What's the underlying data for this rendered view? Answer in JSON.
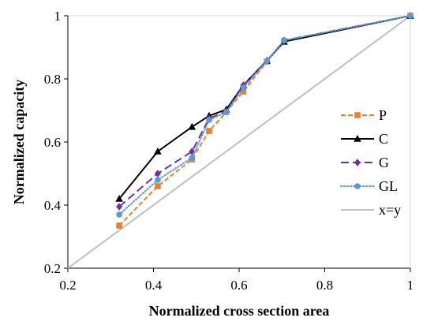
{
  "chart_data": {
    "type": "line",
    "xlabel": "Normalized cross section area",
    "ylabel": "Normalized capacity",
    "xlim": [
      0.2,
      1
    ],
    "ylim": [
      0.2,
      1
    ],
    "x_ticks": [
      0.2,
      0.4,
      0.6,
      0.8,
      1
    ],
    "y_ticks": [
      0.2,
      0.4,
      0.6,
      0.8,
      1
    ],
    "x_tick_labels": [
      "0.2",
      "0.4",
      "0.6",
      "0.8",
      "1"
    ],
    "y_tick_labels": [
      "0.2",
      "0.4",
      "0.6",
      "0.8",
      "1"
    ],
    "grid": false,
    "legend_position": "right",
    "series": [
      {
        "name": "P",
        "color": "#ED7D31",
        "dash": "dashed",
        "marker": "square",
        "x": [
          0.32,
          0.41,
          0.49,
          0.53,
          0.57,
          0.61,
          0.665,
          0.705,
          1.0
        ],
        "y": [
          0.335,
          0.46,
          0.545,
          0.635,
          0.695,
          0.76,
          0.855,
          0.92,
          1.0
        ]
      },
      {
        "name": "C",
        "color": "#000000",
        "dash": "solid",
        "marker": "triangle",
        "x": [
          0.32,
          0.41,
          0.49,
          0.53,
          0.57,
          0.61,
          0.665,
          0.705,
          1.0
        ],
        "y": [
          0.42,
          0.57,
          0.648,
          0.683,
          0.703,
          0.78,
          0.858,
          0.918,
          1.0
        ]
      },
      {
        "name": "G",
        "color": "#7030A0",
        "dash": "longdash",
        "marker": "diamond",
        "x": [
          0.32,
          0.41,
          0.49,
          0.53,
          0.57,
          0.61,
          0.665,
          0.705,
          1.0
        ],
        "y": [
          0.395,
          0.5,
          0.57,
          0.675,
          0.697,
          0.78,
          0.857,
          0.922,
          1.0
        ]
      },
      {
        "name": "GL",
        "color": "#5B9BD5",
        "dash": "dotted",
        "marker": "circle",
        "x": [
          0.32,
          0.41,
          0.49,
          0.53,
          0.57,
          0.61,
          0.665,
          0.705,
          1.0
        ],
        "y": [
          0.37,
          0.48,
          0.55,
          0.67,
          0.695,
          0.772,
          0.857,
          0.922,
          1.0
        ]
      },
      {
        "name": "x=y",
        "color": "#BFBFBF",
        "dash": "solid",
        "marker": "none",
        "x": [
          0.2,
          1.0
        ],
        "y": [
          0.2,
          1.0
        ]
      }
    ]
  }
}
